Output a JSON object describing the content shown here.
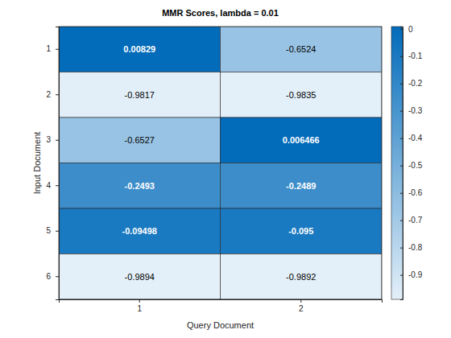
{
  "chart_data": {
    "type": "heatmap",
    "title": "MMR Scores, lambda = 0.01",
    "x_label": "Query Document",
    "y_label": "Input Document",
    "x_categories": [
      "1",
      "2"
    ],
    "y_categories": [
      "1",
      "2",
      "3",
      "4",
      "5",
      "6"
    ],
    "cells": [
      [
        0.00829,
        -0.6524
      ],
      [
        -0.9817,
        -0.9835
      ],
      [
        -0.6527,
        0.006466
      ],
      [
        -0.2493,
        -0.2489
      ],
      [
        -0.09498,
        -0.095
      ],
      [
        -0.9894,
        -0.9892
      ]
    ],
    "data_labels": true,
    "colorbar": {
      "range": [
        -0.9894,
        0.00829
      ],
      "ticks": [
        0,
        -0.1,
        -0.2,
        -0.3,
        -0.4,
        -0.5,
        -0.6,
        -0.7,
        -0.8,
        -0.9
      ]
    }
  }
}
